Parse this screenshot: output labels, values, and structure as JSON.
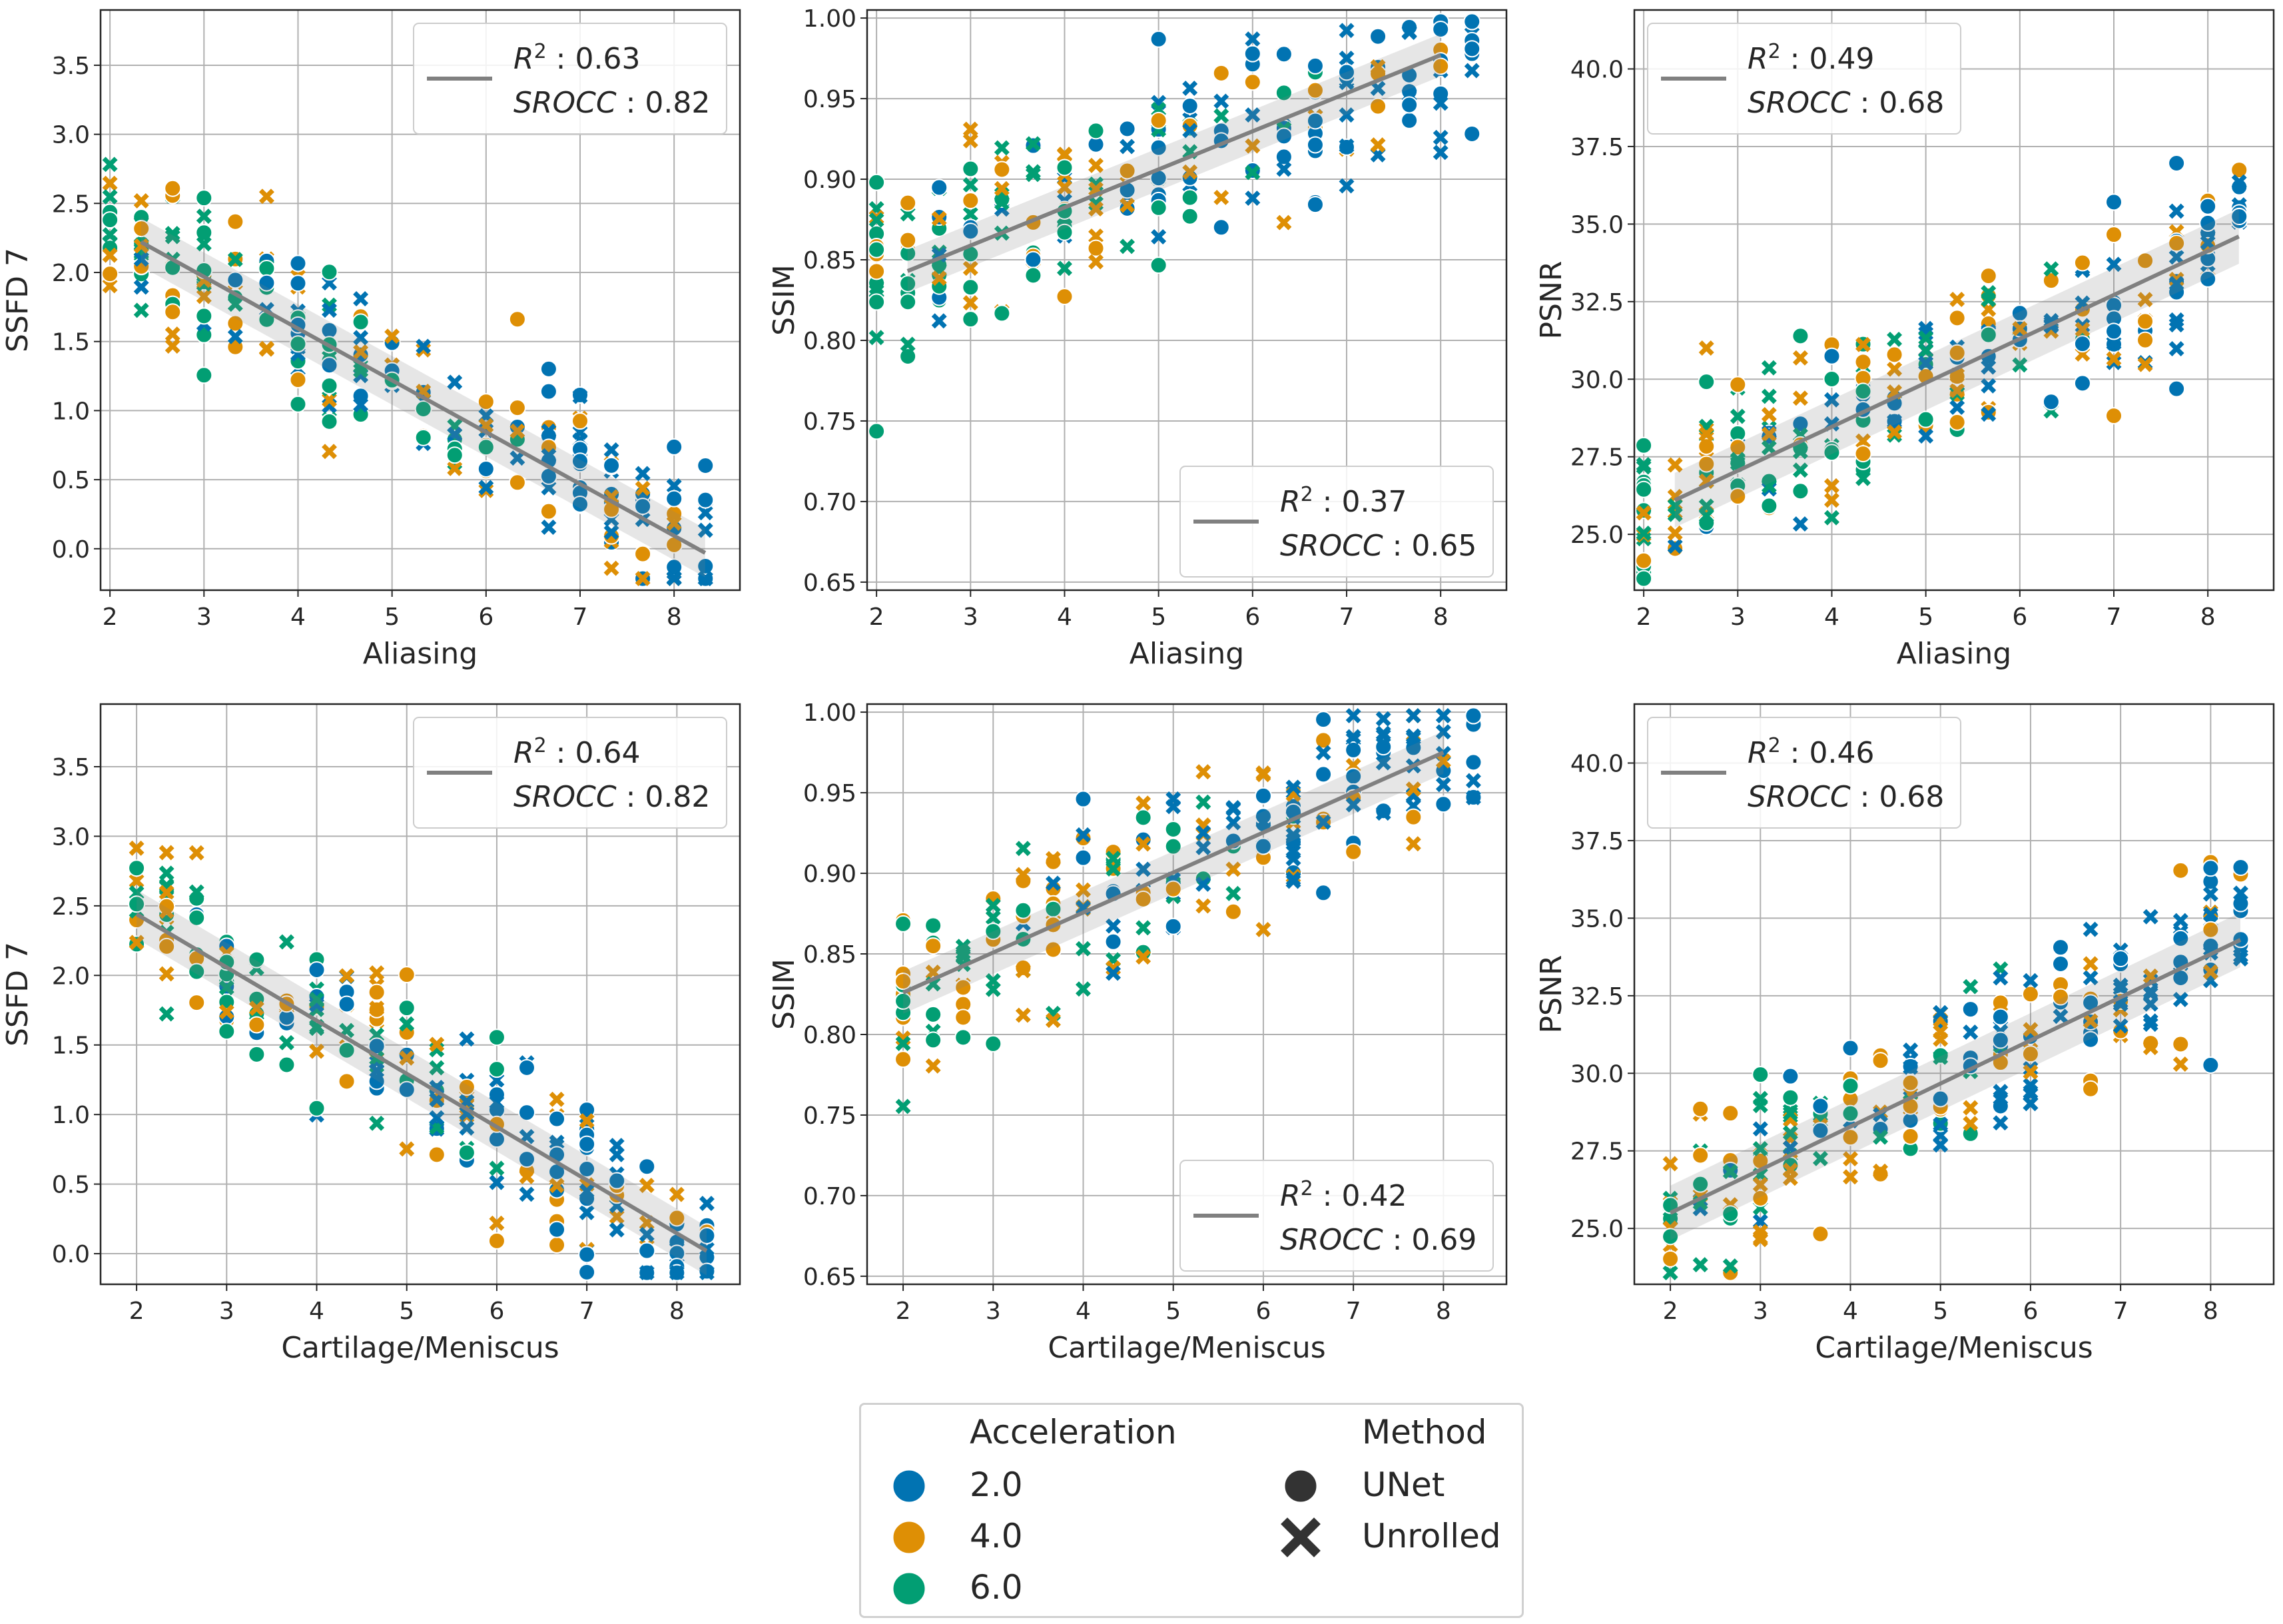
{
  "palette": {
    "acc_2": "#0173b2",
    "acc_4": "#de8f05",
    "acc_6": "#029e73",
    "fit_line": "#808080"
  },
  "legend": {
    "acceleration_title": "Acceleration",
    "acceleration_items": [
      "2.0",
      "4.0",
      "6.0"
    ],
    "method_title": "Method",
    "method_items": [
      "UNet",
      "Unrolled"
    ],
    "method_markers": [
      "filled-circle",
      "x-cross"
    ]
  },
  "chart_data": [
    {
      "type": "scatter",
      "id": "p1",
      "xlabel": "Aliasing",
      "ylabel": "SSFD 7",
      "xlim": [
        1.9,
        8.7
      ],
      "ylim": [
        -0.3,
        3.9
      ],
      "xticks": [
        2,
        3,
        4,
        5,
        6,
        7,
        8
      ],
      "yticks": [
        0.0,
        0.5,
        1.0,
        1.5,
        2.0,
        2.5,
        3.0,
        3.5
      ],
      "ytick_decimals": 1,
      "fit": {
        "x": [
          2.33,
          8.33
        ],
        "y": [
          2.22,
          -0.03
        ],
        "band": 0.08
      },
      "legend_pos": "upper-right",
      "stats": {
        "r2": "0.63",
        "srocc": "0.82"
      }
    },
    {
      "type": "scatter",
      "id": "p2",
      "xlabel": "Aliasing",
      "ylabel": "SSIM",
      "xlim": [
        1.9,
        8.7
      ],
      "ylim": [
        0.645,
        1.005
      ],
      "xticks": [
        2,
        3,
        4,
        5,
        6,
        7,
        8
      ],
      "yticks": [
        0.65,
        0.7,
        0.75,
        0.8,
        0.85,
        0.9,
        0.95,
        1.0
      ],
      "ytick_decimals": 2,
      "fit": {
        "x": [
          2.33,
          8.0
        ],
        "y": [
          0.843,
          0.977
        ],
        "band": 0.006
      },
      "legend_pos": "lower-right",
      "stats": {
        "r2": "0.37",
        "srocc": "0.65"
      }
    },
    {
      "type": "scatter",
      "id": "p3",
      "xlabel": "Aliasing",
      "ylabel": "PSNR",
      "xlim": [
        1.9,
        8.7
      ],
      "ylim": [
        23.2,
        41.9
      ],
      "xticks": [
        2,
        3,
        4,
        5,
        6,
        7,
        8
      ],
      "yticks": [
        25.0,
        27.5,
        30.0,
        32.5,
        35.0,
        37.5,
        40.0
      ],
      "ytick_decimals": 1,
      "fit": {
        "x": [
          2.33,
          8.33
        ],
        "y": [
          26.1,
          34.6
        ],
        "band": 0.4
      },
      "legend_pos": "upper-left",
      "stats": {
        "r2": "0.49",
        "srocc": "0.68"
      }
    },
    {
      "type": "scatter",
      "id": "p4",
      "xlabel": "Cartilage/Meniscus",
      "ylabel": "SSFD 7",
      "xlim": [
        1.6,
        8.7
      ],
      "ylim": [
        -0.22,
        3.95
      ],
      "xticks": [
        2,
        3,
        4,
        5,
        6,
        7,
        8
      ],
      "yticks": [
        0.0,
        0.5,
        1.0,
        1.5,
        2.0,
        2.5,
        3.0,
        3.5
      ],
      "ytick_decimals": 1,
      "fit": {
        "x": [
          2.0,
          8.33
        ],
        "y": [
          2.44,
          0.02
        ],
        "band": 0.08
      },
      "legend_pos": "upper-right",
      "stats": {
        "r2": "0.64",
        "srocc": "0.82"
      }
    },
    {
      "type": "scatter",
      "id": "p5",
      "xlabel": "Cartilage/Meniscus",
      "ylabel": "SSIM",
      "xlim": [
        1.6,
        8.7
      ],
      "ylim": [
        0.645,
        1.005
      ],
      "xticks": [
        2,
        3,
        4,
        5,
        6,
        7,
        8
      ],
      "yticks": [
        0.65,
        0.7,
        0.75,
        0.8,
        0.85,
        0.9,
        0.95,
        1.0
      ],
      "ytick_decimals": 2,
      "fit": {
        "x": [
          2.0,
          8.0
        ],
        "y": [
          0.826,
          0.975
        ],
        "band": 0.006
      },
      "legend_pos": "lower-right",
      "stats": {
        "r2": "0.42",
        "srocc": "0.69"
      }
    },
    {
      "type": "scatter",
      "id": "p6",
      "xlabel": "Cartilage/Meniscus",
      "ylabel": "PSNR",
      "xlim": [
        1.6,
        8.7
      ],
      "ylim": [
        23.2,
        41.9
      ],
      "xticks": [
        2,
        3,
        4,
        5,
        6,
        7,
        8
      ],
      "yticks": [
        25.0,
        27.5,
        30.0,
        32.5,
        35.0,
        37.5,
        40.0
      ],
      "ytick_decimals": 1,
      "fit": {
        "x": [
          2.0,
          8.33
        ],
        "y": [
          25.5,
          34.3
        ],
        "band": 0.4
      },
      "legend_pos": "upper-left",
      "stats": {
        "r2": "0.46",
        "srocc": "0.68"
      }
    }
  ]
}
